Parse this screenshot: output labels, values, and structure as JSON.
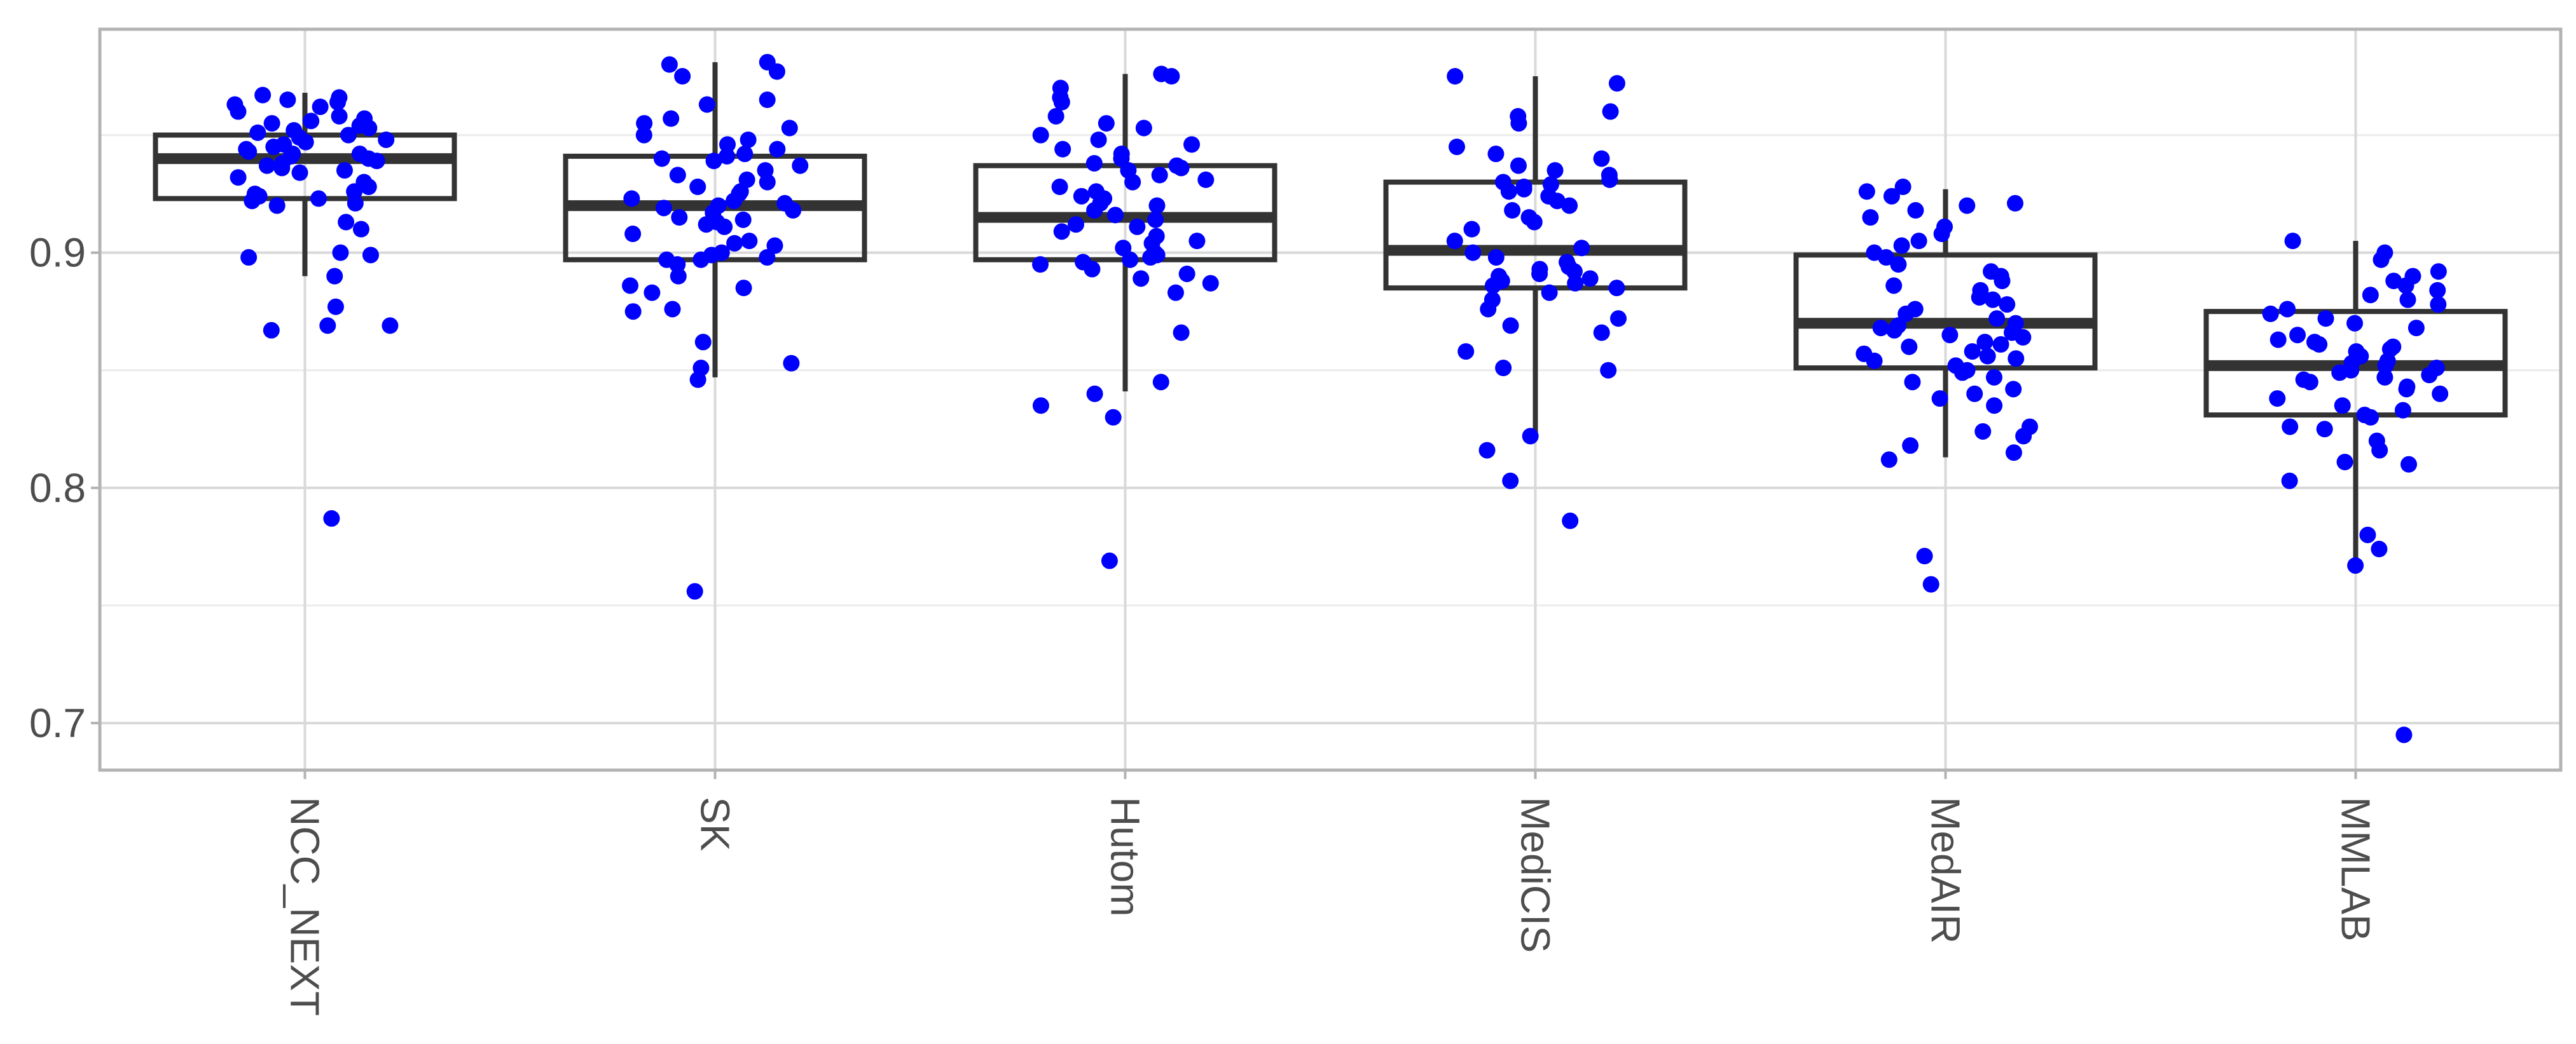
{
  "chart_data": {
    "type": "box",
    "title": "",
    "xlabel": "",
    "ylabel": "",
    "ylim": [
      0.68,
      0.995
    ],
    "y_ticks": [
      0.7,
      0.8,
      0.9
    ],
    "y_tick_labels": [
      "0.7",
      "0.8",
      "0.9"
    ],
    "y_minor_ticks": [
      0.75,
      0.85,
      0.95
    ],
    "grid": true,
    "x_tick_orientation": "rotated 90 degrees clockwise",
    "point_color": "#0000ff",
    "box_color": "#333333",
    "grid_color": "#d9d9d9",
    "categories": [
      "NCC_NEXT",
      "SK",
      "Hutom",
      "MediCIS",
      "MedAIR",
      "MMLAB"
    ],
    "boxes": [
      {
        "category": "NCC_NEXT",
        "q1": 0.923,
        "median": 0.94,
        "q3": 0.95,
        "whisker_low": 0.89,
        "whisker_high": 0.968,
        "points": [
          0.787,
          0.867,
          0.869,
          0.869,
          0.877,
          0.89,
          0.898,
          0.899,
          0.9,
          0.91,
          0.913,
          0.92,
          0.921,
          0.922,
          0.923,
          0.924,
          0.925,
          0.926,
          0.928,
          0.93,
          0.932,
          0.934,
          0.935,
          0.936,
          0.937,
          0.938,
          0.939,
          0.94,
          0.941,
          0.942,
          0.942,
          0.943,
          0.944,
          0.945,
          0.946,
          0.947,
          0.948,
          0.949,
          0.95,
          0.951,
          0.952,
          0.953,
          0.954,
          0.955,
          0.956,
          0.957,
          0.958,
          0.96,
          0.962,
          0.963,
          0.964,
          0.965,
          0.966,
          0.967
        ]
      },
      {
        "category": "SK",
        "q1": 0.897,
        "median": 0.92,
        "q3": 0.941,
        "whisker_low": 0.847,
        "whisker_high": 0.981,
        "points": [
          0.756,
          0.846,
          0.851,
          0.853,
          0.862,
          0.875,
          0.876,
          0.883,
          0.885,
          0.886,
          0.89,
          0.895,
          0.897,
          0.897,
          0.898,
          0.899,
          0.9,
          0.903,
          0.904,
          0.905,
          0.908,
          0.911,
          0.912,
          0.913,
          0.914,
          0.915,
          0.917,
          0.918,
          0.919,
          0.92,
          0.921,
          0.922,
          0.923,
          0.925,
          0.926,
          0.928,
          0.93,
          0.931,
          0.933,
          0.935,
          0.937,
          0.939,
          0.94,
          0.941,
          0.942,
          0.944,
          0.946,
          0.948,
          0.95,
          0.953,
          0.955,
          0.957,
          0.963,
          0.965,
          0.975,
          0.977,
          0.98,
          0.981
        ]
      },
      {
        "category": "Hutom",
        "q1": 0.897,
        "median": 0.915,
        "q3": 0.937,
        "whisker_low": 0.841,
        "whisker_high": 0.976,
        "points": [
          0.769,
          0.83,
          0.835,
          0.84,
          0.845,
          0.866,
          0.883,
          0.887,
          0.889,
          0.891,
          0.893,
          0.895,
          0.896,
          0.897,
          0.898,
          0.899,
          0.9,
          0.902,
          0.904,
          0.905,
          0.907,
          0.909,
          0.911,
          0.912,
          0.914,
          0.916,
          0.918,
          0.92,
          0.921,
          0.923,
          0.924,
          0.926,
          0.928,
          0.93,
          0.931,
          0.933,
          0.935,
          0.936,
          0.937,
          0.938,
          0.94,
          0.942,
          0.944,
          0.946,
          0.948,
          0.95,
          0.953,
          0.955,
          0.958,
          0.964,
          0.966,
          0.97,
          0.975,
          0.976
        ]
      },
      {
        "category": "MediCIS",
        "q1": 0.885,
        "median": 0.901,
        "q3": 0.93,
        "whisker_low": 0.823,
        "whisker_high": 0.975,
        "points": [
          0.786,
          0.803,
          0.816,
          0.822,
          0.85,
          0.851,
          0.858,
          0.866,
          0.869,
          0.872,
          0.876,
          0.88,
          0.883,
          0.885,
          0.886,
          0.887,
          0.888,
          0.889,
          0.89,
          0.891,
          0.892,
          0.893,
          0.894,
          0.896,
          0.898,
          0.9,
          0.902,
          0.905,
          0.91,
          0.913,
          0.915,
          0.918,
          0.92,
          0.922,
          0.924,
          0.926,
          0.927,
          0.928,
          0.929,
          0.93,
          0.931,
          0.933,
          0.935,
          0.937,
          0.94,
          0.942,
          0.945,
          0.955,
          0.958,
          0.96,
          0.972,
          0.975
        ]
      },
      {
        "category": "MedAIR",
        "q1": 0.851,
        "median": 0.87,
        "q3": 0.899,
        "whisker_low": 0.813,
        "whisker_high": 0.927,
        "points": [
          0.759,
          0.771,
          0.812,
          0.815,
          0.818,
          0.822,
          0.824,
          0.826,
          0.835,
          0.838,
          0.84,
          0.842,
          0.845,
          0.847,
          0.849,
          0.85,
          0.852,
          0.854,
          0.855,
          0.856,
          0.857,
          0.858,
          0.86,
          0.861,
          0.862,
          0.864,
          0.865,
          0.866,
          0.867,
          0.868,
          0.869,
          0.87,
          0.872,
          0.874,
          0.876,
          0.878,
          0.88,
          0.881,
          0.884,
          0.886,
          0.888,
          0.89,
          0.892,
          0.895,
          0.898,
          0.9,
          0.903,
          0.905,
          0.908,
          0.911,
          0.915,
          0.918,
          0.92,
          0.921,
          0.924,
          0.926,
          0.928
        ]
      },
      {
        "category": "MMLAB",
        "q1": 0.831,
        "median": 0.852,
        "q3": 0.875,
        "whisker_low": 0.767,
        "whisker_high": 0.905,
        "points": [
          0.695,
          0.767,
          0.774,
          0.78,
          0.803,
          0.81,
          0.811,
          0.816,
          0.82,
          0.825,
          0.826,
          0.83,
          0.831,
          0.833,
          0.835,
          0.838,
          0.84,
          0.842,
          0.843,
          0.845,
          0.846,
          0.847,
          0.848,
          0.849,
          0.85,
          0.851,
          0.852,
          0.853,
          0.854,
          0.856,
          0.858,
          0.859,
          0.86,
          0.861,
          0.862,
          0.863,
          0.865,
          0.868,
          0.87,
          0.872,
          0.874,
          0.876,
          0.878,
          0.88,
          0.882,
          0.884,
          0.886,
          0.888,
          0.89,
          0.892,
          0.897,
          0.9,
          0.905
        ]
      }
    ]
  }
}
